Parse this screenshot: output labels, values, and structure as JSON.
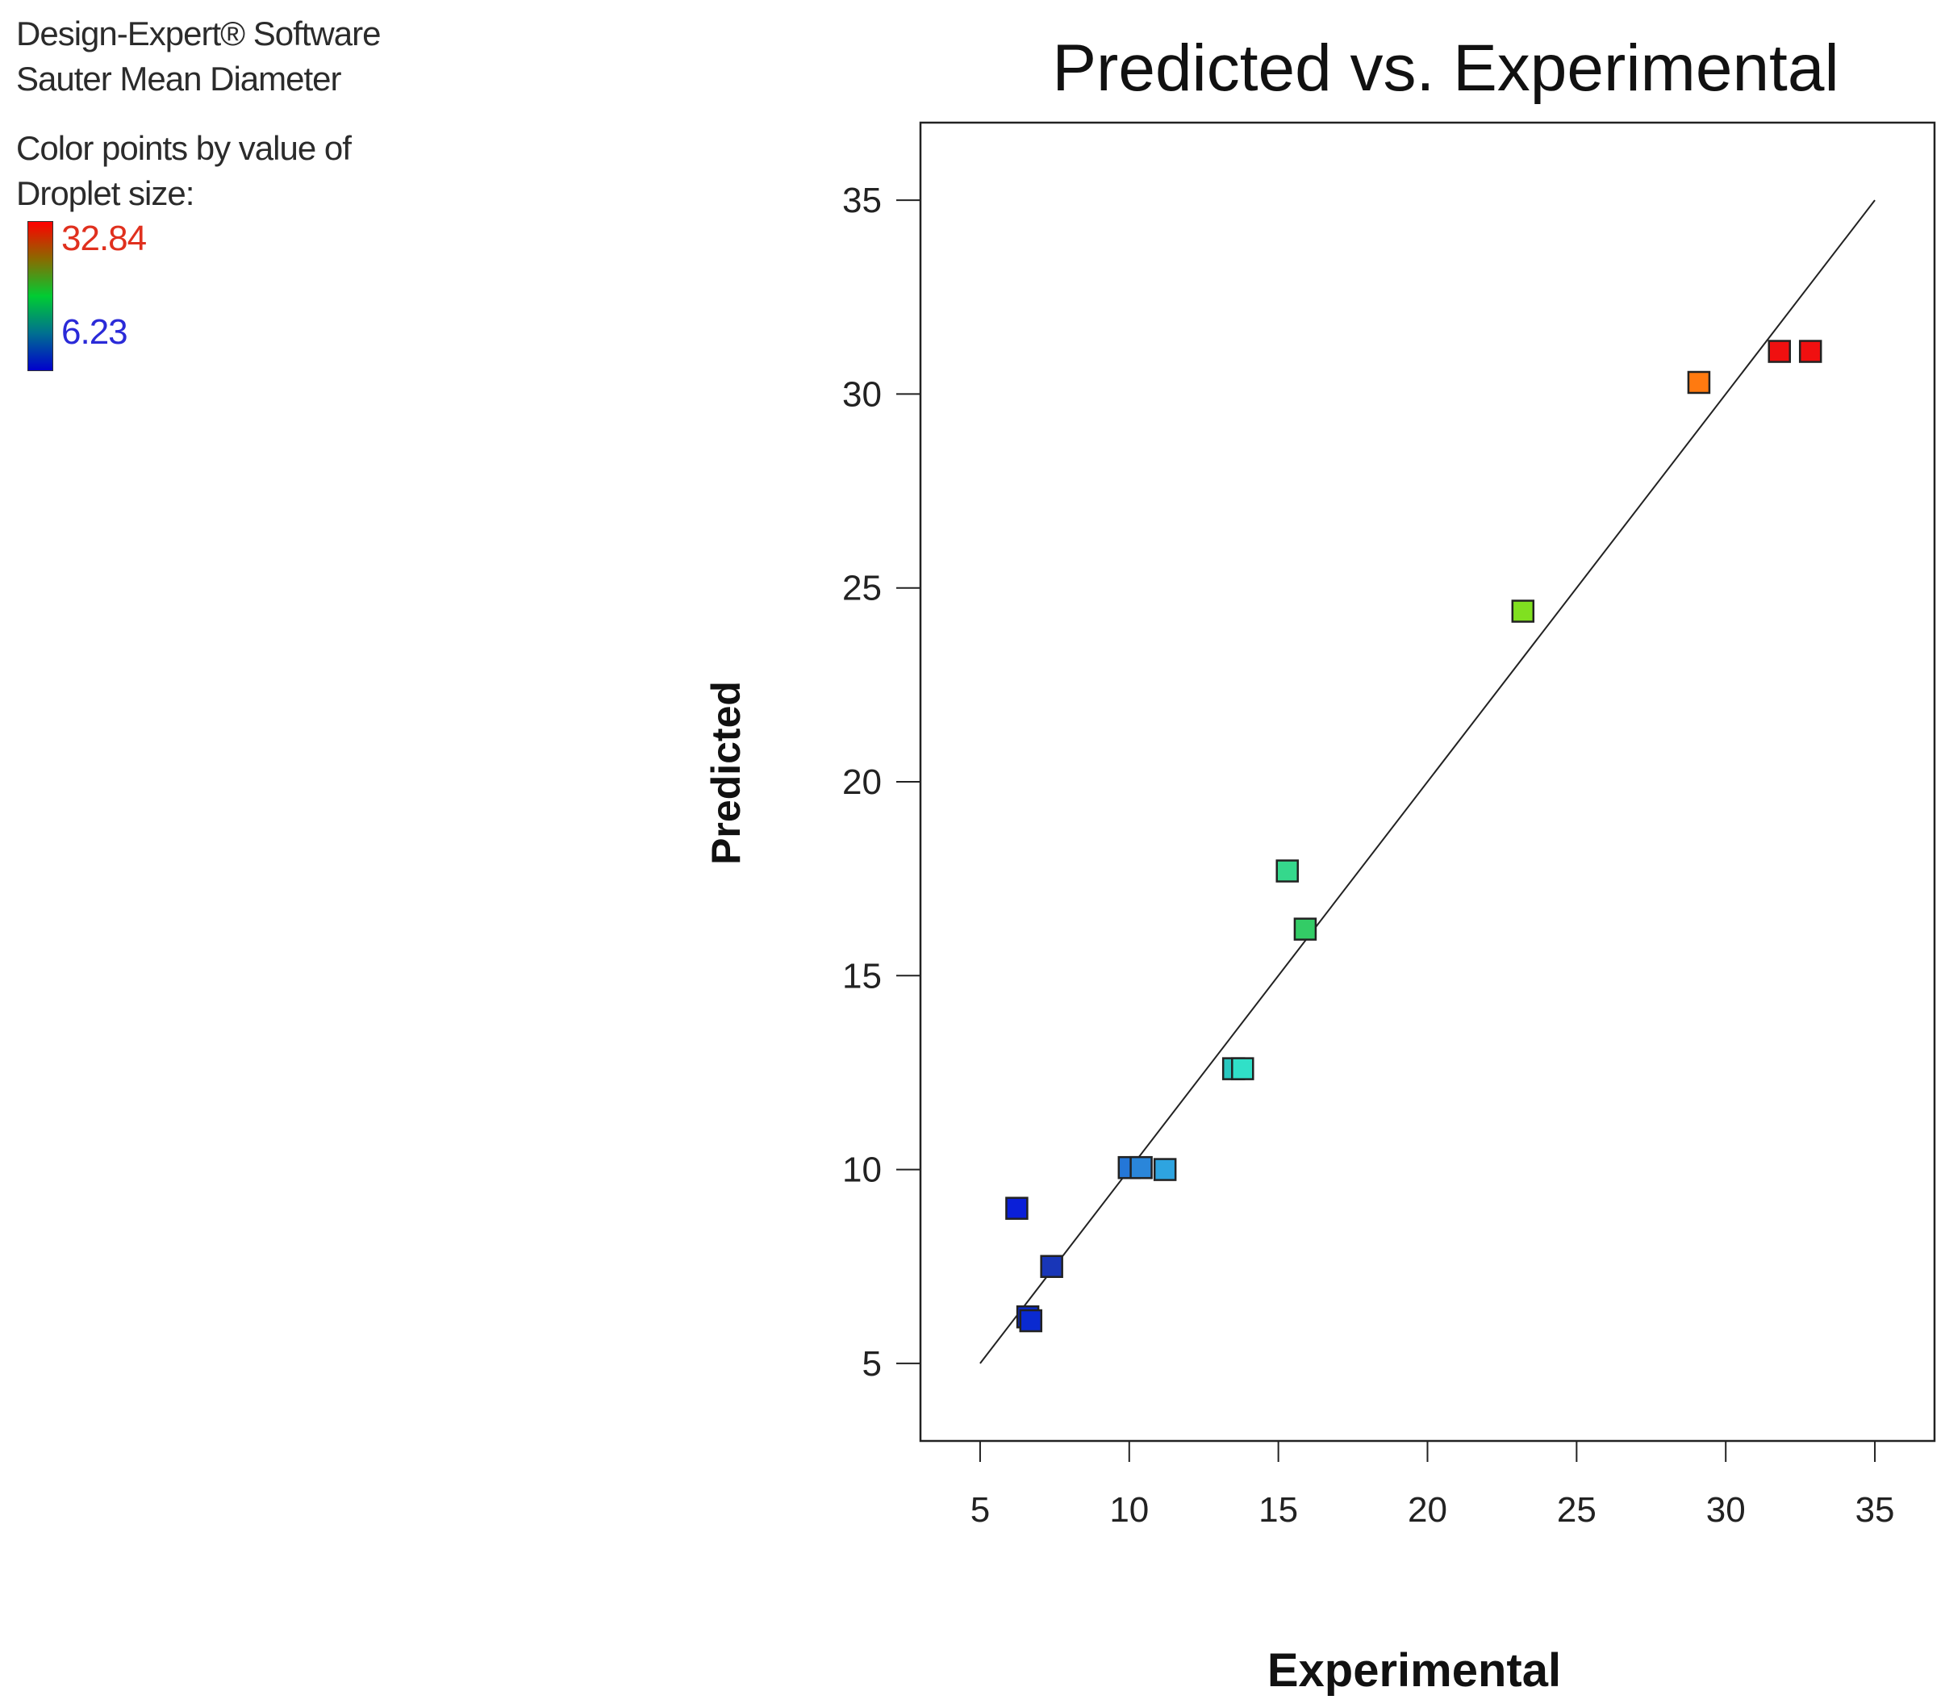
{
  "sidebar": {
    "software": "Design-Expert® Software",
    "response": "Sauter  Mean  Diameter",
    "color_by_line1": "Color points by value of",
    "color_by_line2": "Droplet size:",
    "colorbar_max": "32.84",
    "colorbar_min": "6.23",
    "colorbar_max_color": "#e0301e",
    "colorbar_min_color": "#2a2ad8"
  },
  "chart_data": {
    "type": "scatter",
    "title": "Predicted vs. Experimental",
    "xlabel": "Experimental",
    "ylabel": "Predicted",
    "xlim": [
      3,
      37
    ],
    "ylim": [
      3,
      37
    ],
    "xticks": [
      5,
      10,
      15,
      20,
      25,
      30,
      35
    ],
    "yticks": [
      5,
      10,
      15,
      20,
      25,
      30,
      35
    ],
    "reference_line": {
      "x": [
        5,
        35
      ],
      "y": [
        5,
        35
      ]
    },
    "color_scale": {
      "min": 6.23,
      "max": 32.84
    },
    "points": [
      {
        "x": 6.23,
        "y": 9.0,
        "color": "#0a1fd8"
      },
      {
        "x": 6.6,
        "y": 6.2,
        "color": "#0a2ad0"
      },
      {
        "x": 6.7,
        "y": 6.1,
        "color": "#0a2ad0"
      },
      {
        "x": 7.4,
        "y": 7.5,
        "color": "#1836b8"
      },
      {
        "x": 10.0,
        "y": 10.05,
        "color": "#2477d8"
      },
      {
        "x": 10.4,
        "y": 10.05,
        "color": "#2a86da"
      },
      {
        "x": 11.2,
        "y": 10.0,
        "color": "#2ea4e0"
      },
      {
        "x": 13.5,
        "y": 12.6,
        "color": "#28c8c0"
      },
      {
        "x": 13.8,
        "y": 12.6,
        "color": "#30e0c8"
      },
      {
        "x": 15.3,
        "y": 17.7,
        "color": "#35d88c"
      },
      {
        "x": 15.9,
        "y": 16.2,
        "color": "#33cc66"
      },
      {
        "x": 23.2,
        "y": 24.4,
        "color": "#80e020"
      },
      {
        "x": 29.1,
        "y": 30.3,
        "color": "#ff7a10"
      },
      {
        "x": 31.8,
        "y": 31.1,
        "color": "#f01010"
      },
      {
        "x": 32.84,
        "y": 31.1,
        "color": "#f01010"
      }
    ]
  }
}
